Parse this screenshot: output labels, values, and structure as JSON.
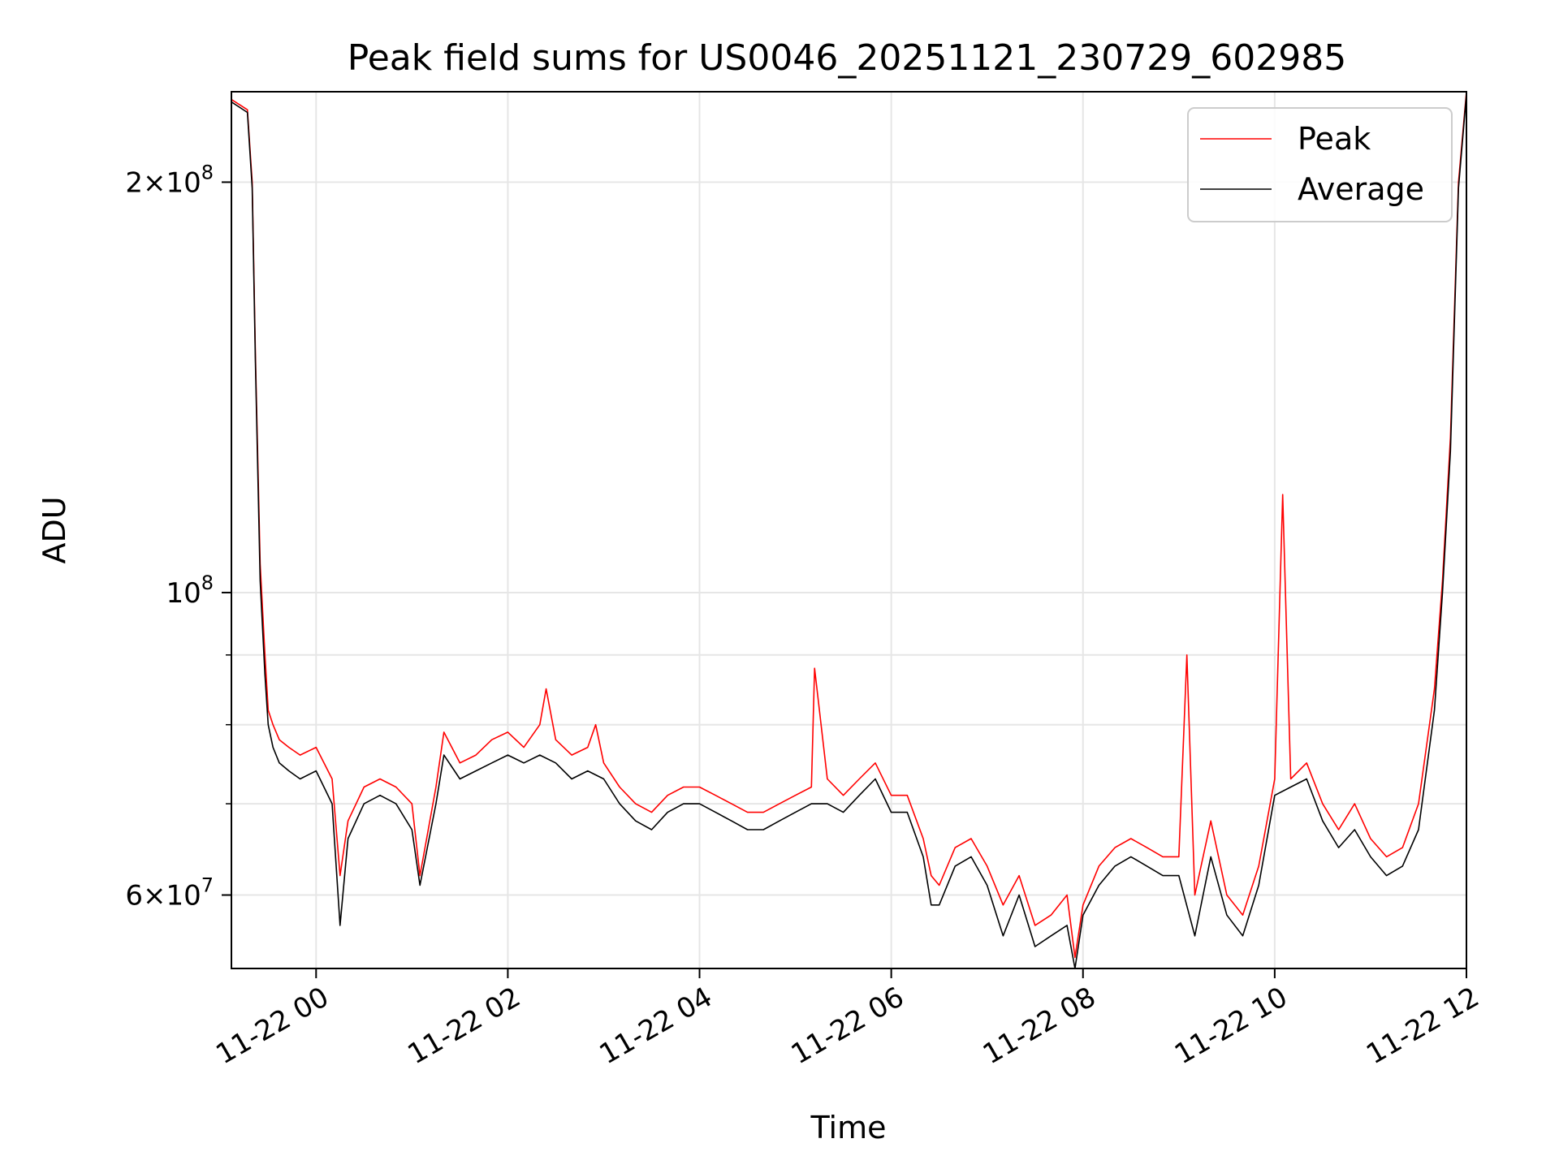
{
  "chart_data": {
    "type": "line",
    "title": "Peak field sums for US0046_20251121_230729_602985",
    "xlabel": "Time",
    "ylabel": "ADU",
    "yscale": "log",
    "ylim": [
      53000000,
      233000000
    ],
    "xlim": [
      "2025-11-21 23:07",
      "2025-11-22 12:00"
    ],
    "grid": true,
    "legend": "top-right",
    "x_ticks": [
      "11-22 00",
      "11-22 02",
      "11-22 04",
      "11-22 06",
      "11-22 08",
      "11-22 10",
      "11-22 12"
    ],
    "y_ticks": [
      {
        "value": 200000000,
        "base": "2×10",
        "exp": "8"
      },
      {
        "value": 100000000,
        "base": "10",
        "exp": "8"
      },
      {
        "value": 60000000,
        "base": "6×10",
        "exp": "7"
      }
    ],
    "series": [
      {
        "name": "Peak",
        "color": "#ff0000",
        "x": [
          "2025-11-21 23:07",
          "2025-11-21 23:12",
          "2025-11-21 23:17",
          "2025-11-21 23:20",
          "2025-11-21 23:22",
          "2025-11-21 23:25",
          "2025-11-21 23:28",
          "2025-11-21 23:30",
          "2025-11-21 23:33",
          "2025-11-21 23:37",
          "2025-11-21 23:43",
          "2025-11-21 23:50",
          "2025-11-22 00:00",
          "2025-11-22 00:10",
          "2025-11-22 00:15",
          "2025-11-22 00:20",
          "2025-11-22 00:30",
          "2025-11-22 00:40",
          "2025-11-22 00:50",
          "2025-11-22 01:00",
          "2025-11-22 01:05",
          "2025-11-22 01:15",
          "2025-11-22 01:20",
          "2025-11-22 01:30",
          "2025-11-22 01:40",
          "2025-11-22 01:50",
          "2025-11-22 02:00",
          "2025-11-22 02:10",
          "2025-11-22 02:20",
          "2025-11-22 02:24",
          "2025-11-22 02:30",
          "2025-11-22 02:40",
          "2025-11-22 02:50",
          "2025-11-22 02:55",
          "2025-11-22 03:00",
          "2025-11-22 03:10",
          "2025-11-22 03:20",
          "2025-11-22 03:30",
          "2025-11-22 03:40",
          "2025-11-22 03:50",
          "2025-11-22 04:00",
          "2025-11-22 04:10",
          "2025-11-22 04:20",
          "2025-11-22 04:30",
          "2025-11-22 04:40",
          "2025-11-22 04:50",
          "2025-11-22 05:00",
          "2025-11-22 05:10",
          "2025-11-22 05:12",
          "2025-11-22 05:20",
          "2025-11-22 05:30",
          "2025-11-22 05:40",
          "2025-11-22 05:50",
          "2025-11-22 06:00",
          "2025-11-22 06:10",
          "2025-11-22 06:20",
          "2025-11-22 06:25",
          "2025-11-22 06:30",
          "2025-11-22 06:40",
          "2025-11-22 06:50",
          "2025-11-22 07:00",
          "2025-11-22 07:10",
          "2025-11-22 07:20",
          "2025-11-22 07:30",
          "2025-11-22 07:40",
          "2025-11-22 07:50",
          "2025-11-22 07:55",
          "2025-11-22 08:00",
          "2025-11-22 08:10",
          "2025-11-22 08:20",
          "2025-11-22 08:30",
          "2025-11-22 08:40",
          "2025-11-22 08:50",
          "2025-11-22 09:00",
          "2025-11-22 09:05",
          "2025-11-22 09:10",
          "2025-11-22 09:20",
          "2025-11-22 09:30",
          "2025-11-22 09:40",
          "2025-11-22 09:50",
          "2025-11-22 10:00",
          "2025-11-22 10:05",
          "2025-11-22 10:10",
          "2025-11-22 10:20",
          "2025-11-22 10:30",
          "2025-11-22 10:40",
          "2025-11-22 10:50",
          "2025-11-22 11:00",
          "2025-11-22 11:10",
          "2025-11-22 11:20",
          "2025-11-22 11:30",
          "2025-11-22 11:40",
          "2025-11-22 11:45",
          "2025-11-22 11:50",
          "2025-11-22 11:55",
          "2025-11-22 12:00"
        ],
        "values": [
          230000000,
          228000000,
          226000000,
          200000000,
          150000000,
          105000000,
          90000000,
          82000000,
          80000000,
          78000000,
          77000000,
          76000000,
          77000000,
          73000000,
          62000000,
          68000000,
          72000000,
          73000000,
          72000000,
          70000000,
          62000000,
          72000000,
          79000000,
          75000000,
          76000000,
          78000000,
          79000000,
          77000000,
          80000000,
          85000000,
          78000000,
          76000000,
          77000000,
          80000000,
          75000000,
          72000000,
          70000000,
          69000000,
          71000000,
          72000000,
          72000000,
          71000000,
          70000000,
          69000000,
          69000000,
          70000000,
          71000000,
          72000000,
          88000000,
          73000000,
          71000000,
          73000000,
          75000000,
          71000000,
          71000000,
          66000000,
          62000000,
          61000000,
          65000000,
          66000000,
          63000000,
          59000000,
          62000000,
          57000000,
          58000000,
          60000000,
          54000000,
          59000000,
          63000000,
          65000000,
          66000000,
          65000000,
          64000000,
          64000000,
          90000000,
          60000000,
          68000000,
          60000000,
          58000000,
          63000000,
          73000000,
          118000000,
          73000000,
          75000000,
          70000000,
          67000000,
          70000000,
          66000000,
          64000000,
          65000000,
          70000000,
          85000000,
          102000000,
          130000000,
          200000000,
          233000000
        ]
      },
      {
        "name": "Average",
        "color": "#000000",
        "x": [
          "2025-11-21 23:07",
          "2025-11-21 23:12",
          "2025-11-21 23:17",
          "2025-11-21 23:20",
          "2025-11-21 23:22",
          "2025-11-21 23:25",
          "2025-11-21 23:28",
          "2025-11-21 23:30",
          "2025-11-21 23:33",
          "2025-11-21 23:37",
          "2025-11-21 23:43",
          "2025-11-21 23:50",
          "2025-11-22 00:00",
          "2025-11-22 00:10",
          "2025-11-22 00:15",
          "2025-11-22 00:20",
          "2025-11-22 00:30",
          "2025-11-22 00:40",
          "2025-11-22 00:50",
          "2025-11-22 01:00",
          "2025-11-22 01:05",
          "2025-11-22 01:15",
          "2025-11-22 01:20",
          "2025-11-22 01:30",
          "2025-11-22 01:40",
          "2025-11-22 01:50",
          "2025-11-22 02:00",
          "2025-11-22 02:10",
          "2025-11-22 02:20",
          "2025-11-22 02:30",
          "2025-11-22 02:40",
          "2025-11-22 02:50",
          "2025-11-22 03:00",
          "2025-11-22 03:10",
          "2025-11-22 03:20",
          "2025-11-22 03:30",
          "2025-11-22 03:40",
          "2025-11-22 03:50",
          "2025-11-22 04:00",
          "2025-11-22 04:10",
          "2025-11-22 04:20",
          "2025-11-22 04:30",
          "2025-11-22 04:40",
          "2025-11-22 04:50",
          "2025-11-22 05:00",
          "2025-11-22 05:10",
          "2025-11-22 05:20",
          "2025-11-22 05:30",
          "2025-11-22 05:40",
          "2025-11-22 05:50",
          "2025-11-22 06:00",
          "2025-11-22 06:10",
          "2025-11-22 06:20",
          "2025-11-22 06:25",
          "2025-11-22 06:30",
          "2025-11-22 06:40",
          "2025-11-22 06:50",
          "2025-11-22 07:00",
          "2025-11-22 07:10",
          "2025-11-22 07:20",
          "2025-11-22 07:30",
          "2025-11-22 07:40",
          "2025-11-22 07:50",
          "2025-11-22 07:55",
          "2025-11-22 08:00",
          "2025-11-22 08:10",
          "2025-11-22 08:20",
          "2025-11-22 08:30",
          "2025-11-22 08:40",
          "2025-11-22 08:50",
          "2025-11-22 09:00",
          "2025-11-22 09:10",
          "2025-11-22 09:20",
          "2025-11-22 09:30",
          "2025-11-22 09:40",
          "2025-11-22 09:50",
          "2025-11-22 10:00",
          "2025-11-22 10:10",
          "2025-11-22 10:20",
          "2025-11-22 10:30",
          "2025-11-22 10:40",
          "2025-11-22 10:50",
          "2025-11-22 11:00",
          "2025-11-22 11:10",
          "2025-11-22 11:20",
          "2025-11-22 11:30",
          "2025-11-22 11:40",
          "2025-11-22 11:45",
          "2025-11-22 11:50",
          "2025-11-22 11:55",
          "2025-11-22 12:00"
        ],
        "values": [
          229000000,
          227000000,
          225000000,
          198000000,
          148000000,
          102000000,
          87000000,
          80000000,
          77000000,
          75000000,
          74000000,
          73000000,
          74000000,
          70000000,
          57000000,
          66000000,
          70000000,
          71000000,
          70000000,
          67000000,
          61000000,
          70000000,
          76000000,
          73000000,
          74000000,
          75000000,
          76000000,
          75000000,
          76000000,
          75000000,
          73000000,
          74000000,
          73000000,
          70000000,
          68000000,
          67000000,
          69000000,
          70000000,
          70000000,
          69000000,
          68000000,
          67000000,
          67000000,
          68000000,
          69000000,
          70000000,
          70000000,
          69000000,
          71000000,
          73000000,
          69000000,
          69000000,
          64000000,
          59000000,
          59000000,
          63000000,
          64000000,
          61000000,
          56000000,
          60000000,
          55000000,
          56000000,
          57000000,
          53000000,
          58000000,
          61000000,
          63000000,
          64000000,
          63000000,
          62000000,
          62000000,
          56000000,
          64000000,
          58000000,
          56000000,
          61000000,
          71000000,
          72000000,
          73000000,
          68000000,
          65000000,
          67000000,
          64000000,
          62000000,
          63000000,
          67000000,
          82000000,
          100000000,
          127000000,
          198000000,
          232000000
        ]
      }
    ]
  }
}
